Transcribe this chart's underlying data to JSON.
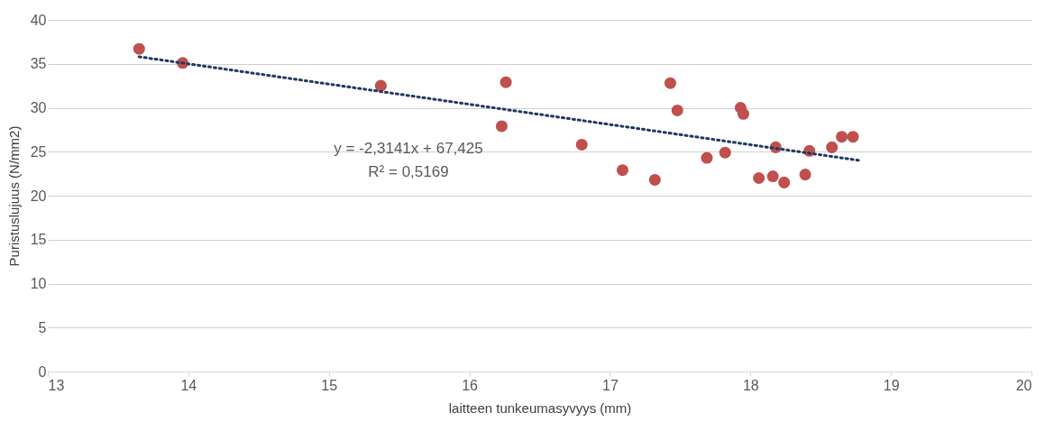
{
  "chart_data": {
    "type": "scatter",
    "xlabel": "laitteen tunkeumasyvyys (mm)",
    "ylabel": "Puristuslujuus (N/mm2)",
    "xlim": [
      13,
      20
    ],
    "xticks": [
      13,
      14,
      15,
      16,
      17,
      18,
      19,
      20
    ],
    "ylim": [
      0,
      40
    ],
    "yticks": [
      0,
      5,
      10,
      15,
      20,
      25,
      30,
      35,
      40
    ],
    "grid": "y",
    "annotations": [
      "y = -2,3141x + 67,425",
      "R² = 0,5169"
    ],
    "series": [
      {
        "marker": "circle",
        "color": "#c0504d",
        "x": [
          13.65,
          13.96,
          15.37,
          16.23,
          16.26,
          16.8,
          17.09,
          17.32,
          17.43,
          17.48,
          17.69,
          17.82,
          17.93,
          17.95,
          18.06,
          18.16,
          18.18,
          18.24,
          18.39,
          18.42,
          18.58,
          18.65,
          18.73
        ],
        "values": [
          36.7,
          35.1,
          32.5,
          27.9,
          32.9,
          25.8,
          22.9,
          21.8,
          32.8,
          29.7,
          24.3,
          24.9,
          30,
          29.3,
          22,
          22.2,
          25.5,
          21.5,
          22.4,
          25.1,
          25.5,
          26.7,
          26.7
        ]
      },
      {
        "type": "line",
        "color": "#1f3864",
        "line_style": "dotted",
        "x": [
          13.65,
          18.78
        ],
        "values": [
          35.8,
          24.0
        ]
      }
    ]
  }
}
